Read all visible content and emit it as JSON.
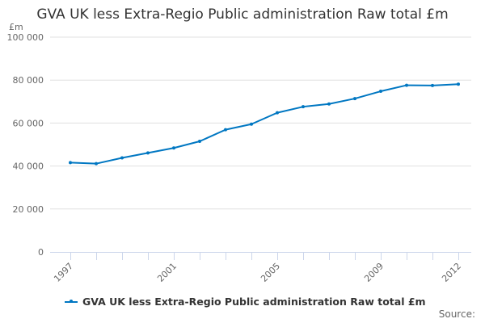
{
  "chart_data": {
    "type": "line",
    "title": "GVA UK less Extra-Regio Public administration Raw total £m",
    "ylabel": "£m",
    "xlabel": "",
    "ylim": [
      0,
      100000
    ],
    "yticks": [
      0,
      20000,
      40000,
      60000,
      80000,
      100000
    ],
    "ytick_labels": [
      "0",
      "20 000",
      "40 000",
      "60 000",
      "80 000",
      "100 000"
    ],
    "x": [
      1997,
      1998,
      1999,
      2000,
      2001,
      2002,
      2003,
      2004,
      2005,
      2006,
      2007,
      2008,
      2009,
      2010,
      2011,
      2012
    ],
    "xtick_labels": [
      "1997",
      "2001",
      "2005",
      "2009",
      "2012"
    ],
    "series": [
      {
        "name": "GVA UK less Extra-Regio Public administration Raw total £m",
        "color": "#0077c2",
        "values": [
          41600,
          41100,
          43800,
          46100,
          48400,
          51500,
          56900,
          59500,
          64800,
          67600,
          68900,
          71400,
          74800,
          77600,
          77500,
          78100
        ]
      }
    ],
    "grid": true,
    "legend": "bottom",
    "source_label": "Source:"
  }
}
